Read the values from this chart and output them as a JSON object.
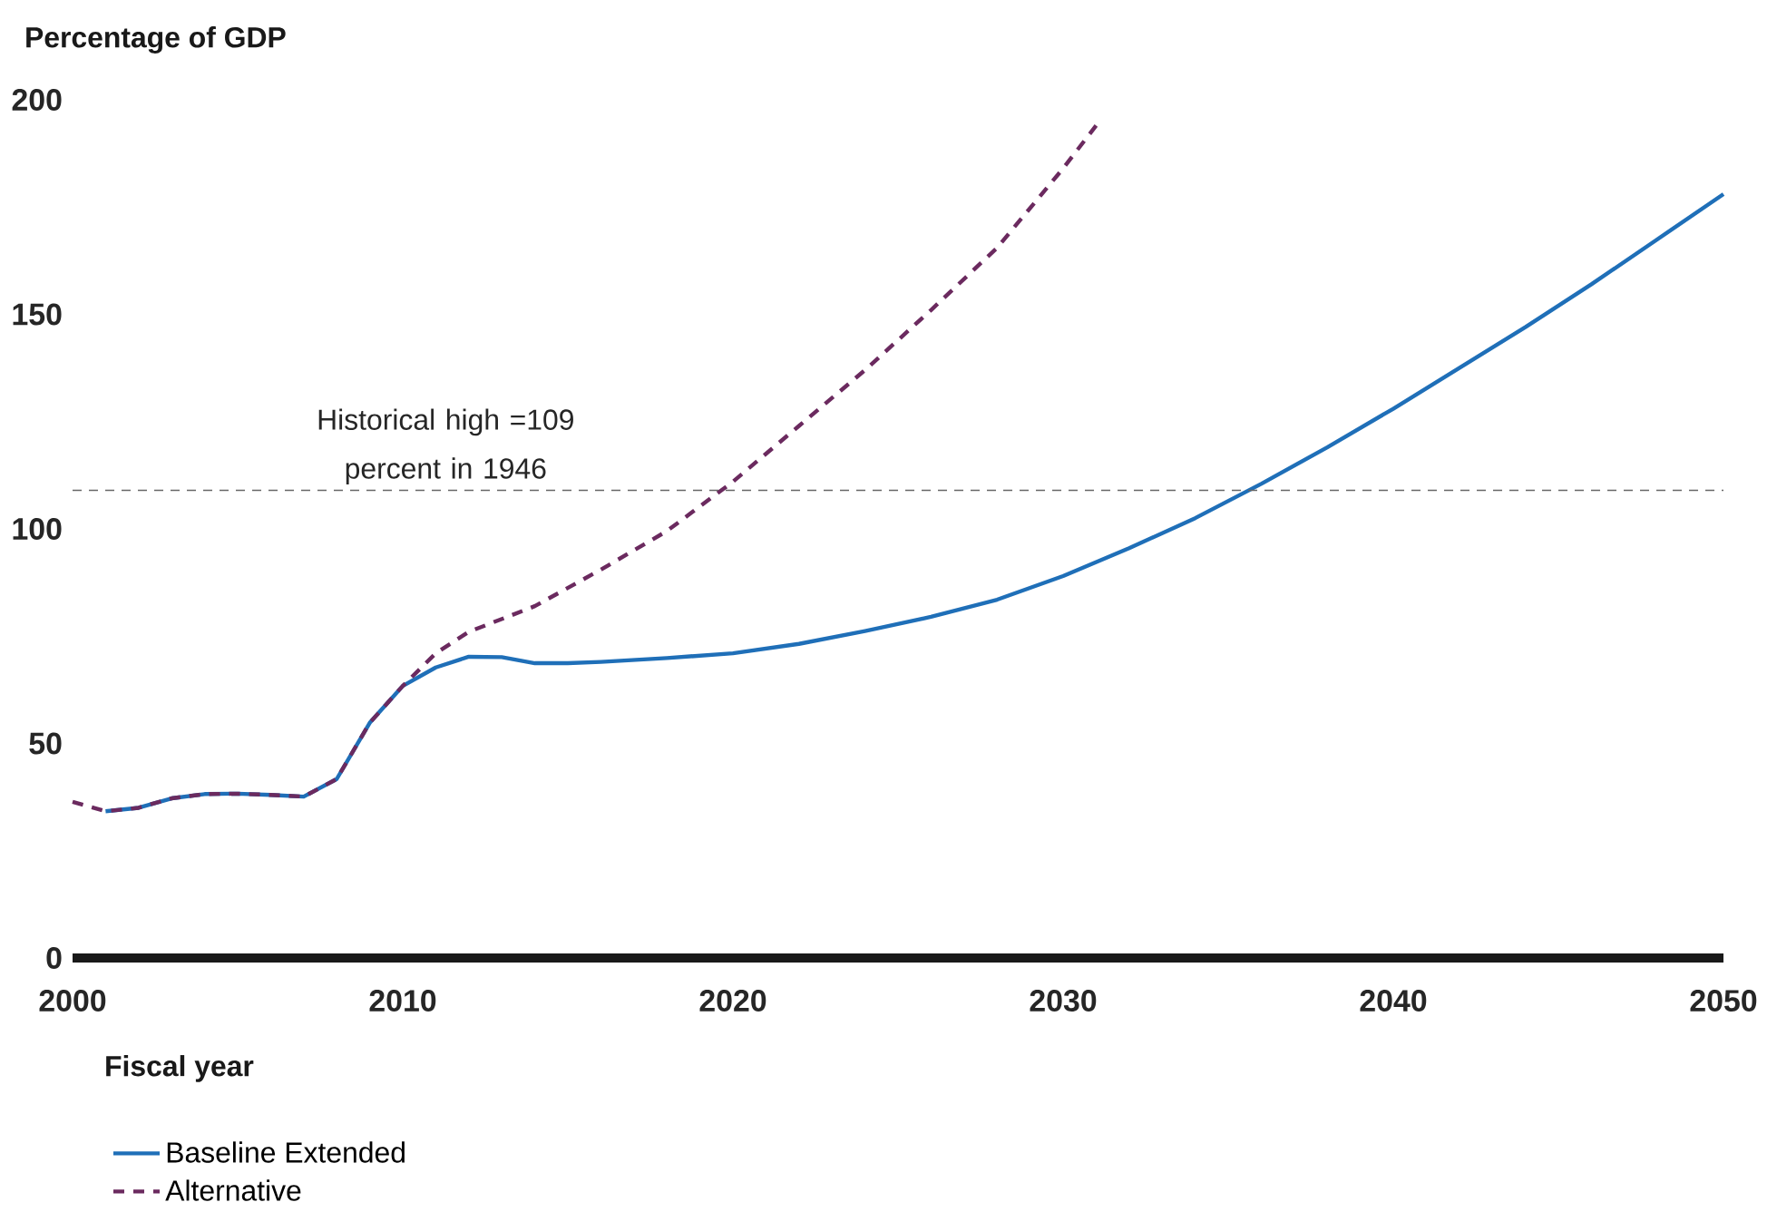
{
  "chart_data": {
    "type": "line",
    "ylabel": "Percentage of GDP",
    "xlabel": "Fiscal year",
    "xlim": [
      2000,
      2050
    ],
    "ylim": [
      0,
      200
    ],
    "xticks": [
      2000,
      2010,
      2020,
      2030,
      2040,
      2050
    ],
    "yticks": [
      0,
      50,
      100,
      150,
      200
    ],
    "grid": false,
    "legend": "bottom",
    "ref_lines": [
      {
        "axis": "y",
        "value": 109,
        "label": "Historical high =109 percent in 1946",
        "color": "#666666",
        "line_style": "dashed"
      }
    ],
    "series": [
      {
        "name": "Baseline Extended",
        "color": "#1f6fb8",
        "line_style": "solid",
        "x": [
          2001,
          2002,
          2003,
          2004,
          2005,
          2006,
          2007,
          2008,
          2009,
          2010,
          2011,
          2012,
          2013,
          2014,
          2015,
          2016,
          2018,
          2020,
          2022,
          2024,
          2026,
          2028,
          2030,
          2032,
          2034,
          2036,
          2038,
          2040,
          2042,
          2044,
          2046,
          2048,
          2050
        ],
        "values": [
          34.2,
          35,
          37.2,
          38.2,
          38.3,
          38,
          37.6,
          41.7,
          54.8,
          63.4,
          67.7,
          70.2,
          70.1,
          68.7,
          68.7,
          69,
          69.9,
          71,
          73.2,
          76.2,
          79.5,
          83.5,
          89,
          95.5,
          102.5,
          110.5,
          119,
          128,
          137.5,
          147,
          157,
          167.5,
          178
        ]
      },
      {
        "name": "Alternative",
        "color": "#6b2a5f",
        "line_style": "dashed",
        "x": [
          2000,
          2001,
          2002,
          2003,
          2004,
          2005,
          2006,
          2007,
          2008,
          2009,
          2010,
          2011,
          2012,
          2013,
          2014,
          2016,
          2018,
          2020,
          2022,
          2024,
          2026,
          2028,
          2030,
          2031
        ],
        "values": [
          36.4,
          34.2,
          35,
          37.2,
          38.2,
          38.3,
          38,
          37.6,
          41.7,
          54.8,
          63.4,
          71,
          76,
          79,
          82,
          90.5,
          99.5,
          111,
          124,
          137,
          151,
          165.5,
          184,
          194
        ]
      }
    ]
  }
}
